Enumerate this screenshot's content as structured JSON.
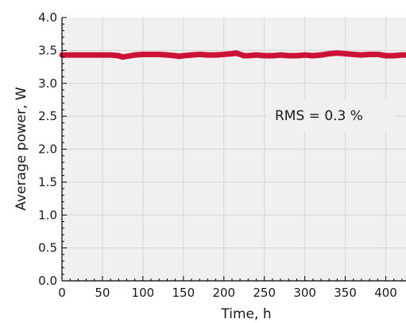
{
  "chart_data": {
    "type": "line",
    "xlabel": "Time, h",
    "ylabel": "Average power, W",
    "xlim": [
      0,
      425
    ],
    "ylim": [
      0,
      4.0
    ],
    "xticks": [
      0,
      50,
      100,
      150,
      200,
      250,
      300,
      350,
      400
    ],
    "xtick_labels": [
      "0",
      "50",
      "100",
      "150",
      "200",
      "250",
      "300",
      "350",
      "400"
    ],
    "yticks": [
      0,
      0.5,
      1.0,
      1.5,
      2.0,
      2.5,
      3.0,
      3.5,
      4.0
    ],
    "ytick_labels": [
      "0.0",
      "0.5",
      "1.0",
      "1.5",
      "2.0",
      "2.5",
      "3.0",
      "3.5",
      "4.0"
    ],
    "grid": true,
    "annotation": "RMS = 0.3 %",
    "series": [
      {
        "color": "#cc1236",
        "x": [
          0,
          10,
          20,
          30,
          40,
          50,
          60,
          70,
          75,
          80,
          90,
          100,
          110,
          120,
          130,
          140,
          145,
          150,
          160,
          170,
          180,
          190,
          200,
          210,
          215,
          220,
          225,
          230,
          240,
          250,
          260,
          270,
          280,
          290,
          300,
          310,
          320,
          330,
          340,
          350,
          360,
          370,
          380,
          390,
          400,
          410,
          420,
          425
        ],
        "y": [
          3.43,
          3.43,
          3.43,
          3.43,
          3.43,
          3.43,
          3.43,
          3.42,
          3.4,
          3.41,
          3.43,
          3.44,
          3.44,
          3.44,
          3.43,
          3.42,
          3.41,
          3.42,
          3.43,
          3.44,
          3.43,
          3.43,
          3.44,
          3.45,
          3.46,
          3.44,
          3.42,
          3.42,
          3.43,
          3.42,
          3.42,
          3.43,
          3.42,
          3.42,
          3.43,
          3.42,
          3.43,
          3.45,
          3.46,
          3.45,
          3.44,
          3.43,
          3.44,
          3.44,
          3.42,
          3.42,
          3.43,
          3.43
        ]
      }
    ]
  },
  "colors": {
    "plot_background": "#f0f0f0",
    "grid": "#d6d6d6",
    "axis": "#000000",
    "series": "#cc1236"
  }
}
